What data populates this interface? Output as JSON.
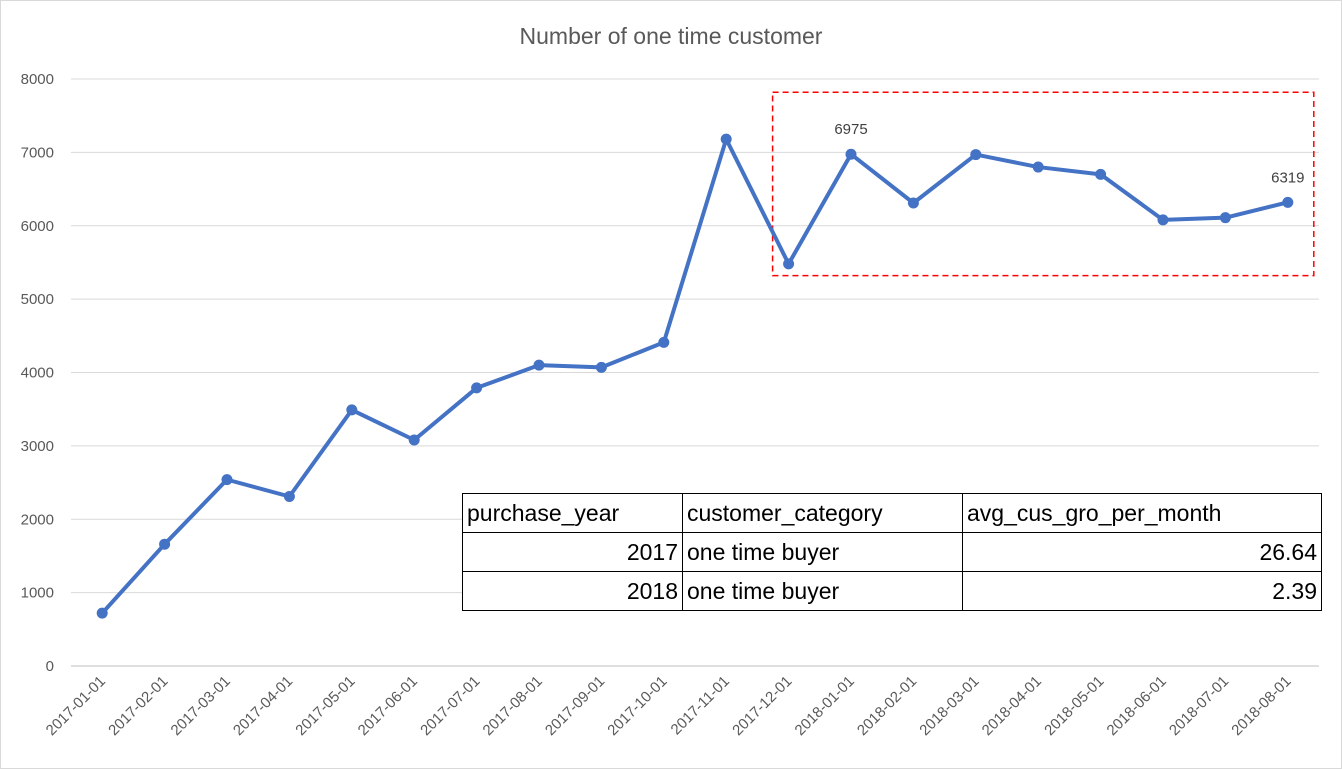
{
  "chart_data": {
    "type": "line",
    "title": "Number of one time customer",
    "xlabel": "",
    "ylabel": "",
    "ylim": [
      0,
      8000
    ],
    "yticks": [
      0,
      1000,
      2000,
      3000,
      4000,
      5000,
      6000,
      7000,
      8000
    ],
    "grid": true,
    "legend": "none",
    "categories": [
      "2017-01-01",
      "2017-02-01",
      "2017-03-01",
      "2017-04-01",
      "2017-05-01",
      "2017-06-01",
      "2017-07-01",
      "2017-08-01",
      "2017-09-01",
      "2017-10-01",
      "2017-11-01",
      "2017-12-01",
      "2018-01-01",
      "2018-02-01",
      "2018-03-01",
      "2018-04-01",
      "2018-05-01",
      "2018-06-01",
      "2018-07-01",
      "2018-08-01"
    ],
    "series": [
      {
        "values": [
          720,
          1660,
          2540,
          2310,
          3490,
          3080,
          3790,
          4100,
          4070,
          4410,
          7180,
          5480,
          6975,
          6310,
          6970,
          6800,
          6700,
          6080,
          6110,
          6319
        ],
        "color": "#4472c4"
      }
    ],
    "data_labels": [
      {
        "category": "2018-01-01",
        "text": "6975"
      },
      {
        "category": "2018-08-01",
        "text": "6319"
      }
    ],
    "highlight_box": {
      "color": "#ff0000",
      "style": "dashed",
      "from_category": "2017-12-01",
      "to_category": "2018-08-01",
      "y_range": [
        5320,
        7820
      ]
    }
  },
  "table": {
    "headers": [
      "purchase_year",
      "customer_category",
      "avg_cus_gro_per_month"
    ],
    "rows": [
      [
        "2017",
        "one time buyer",
        "26.64"
      ],
      [
        "2018",
        "one time buyer",
        "2.39"
      ]
    ]
  }
}
